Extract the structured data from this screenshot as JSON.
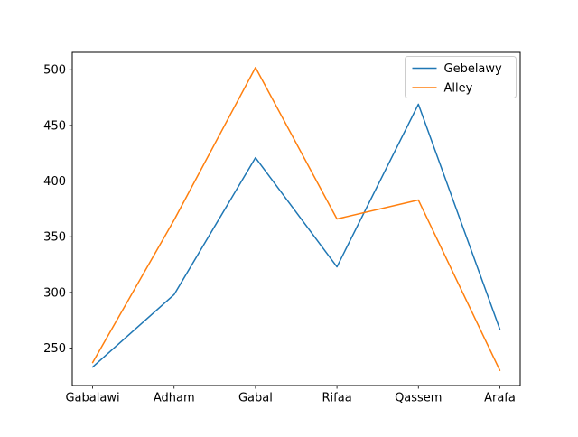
{
  "chart_data": {
    "type": "line",
    "title": "",
    "xlabel": "",
    "ylabel": "",
    "categories": [
      "Gabalawi",
      "Adham",
      "Gabal",
      "Rifaa",
      "Qassem",
      "Arafa"
    ],
    "series": [
      {
        "name": "Gebelawy",
        "color": "#1f77b4",
        "values": [
          233,
          298,
          421,
          323,
          469,
          267
        ]
      },
      {
        "name": "Alley",
        "color": "#ff7f0e",
        "values": [
          237,
          365,
          502,
          366,
          383,
          230
        ]
      }
    ],
    "yticks": [
      250,
      300,
      350,
      400,
      450,
      500
    ],
    "ylim": [
      216.4,
      515.6
    ],
    "grid": false,
    "legend": {
      "position": "upper right",
      "entries": [
        "Gebelawy",
        "Alley"
      ]
    },
    "colors": {
      "background": "#ffffff",
      "axis": "#000000",
      "tick_labels": "#000000",
      "legend_border": "#cccccc",
      "legend_background": "#ffffff"
    }
  }
}
